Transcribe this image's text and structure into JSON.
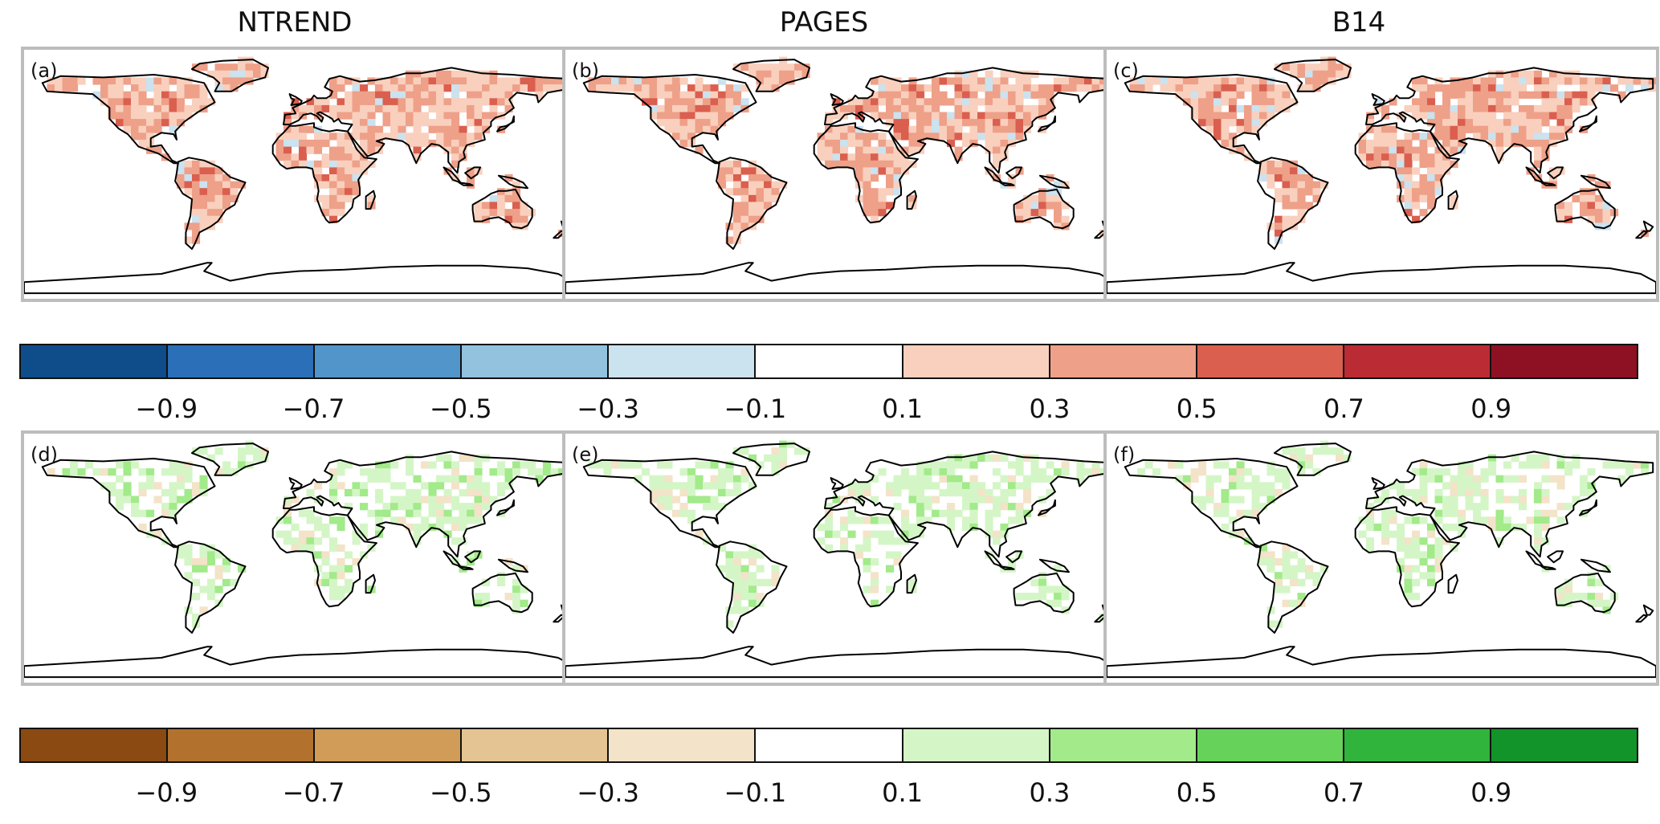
{
  "columns": [
    "NTREND",
    "PAGES",
    "B14"
  ],
  "panel_labels": [
    "(a)",
    "(b)",
    "(c)",
    "(d)",
    "(e)",
    "(f)"
  ],
  "colorbar_top": {
    "colors": [
      "#0f4c8a",
      "#2a6fb7",
      "#5295ca",
      "#92c2de",
      "#cbe2ef",
      "#ffffff",
      "#f9d0bd",
      "#eea089",
      "#da5f4f",
      "#bb2b34",
      "#8e1023"
    ],
    "ticks": [
      "−0.9",
      "−0.7",
      "−0.5",
      "−0.3",
      "−0.1",
      "0.1",
      "0.3",
      "0.5",
      "0.7",
      "0.9"
    ]
  },
  "colorbar_bottom": {
    "colors": [
      "#8a4a12",
      "#b2722e",
      "#d09c58",
      "#e5c493",
      "#f3e3c8",
      "#ffffff",
      "#d4f6c6",
      "#a2ea8a",
      "#66d25a",
      "#30b43c",
      "#13942a"
    ],
    "ticks": [
      "−0.9",
      "−0.7",
      "−0.5",
      "−0.3",
      "−0.1",
      "0.1",
      "0.3",
      "0.5",
      "0.7",
      "0.9"
    ]
  },
  "map_colors": {
    "coastline": "#000000",
    "land_top": "#f2a48c",
    "land_bottom": "#d6f3c8"
  }
}
